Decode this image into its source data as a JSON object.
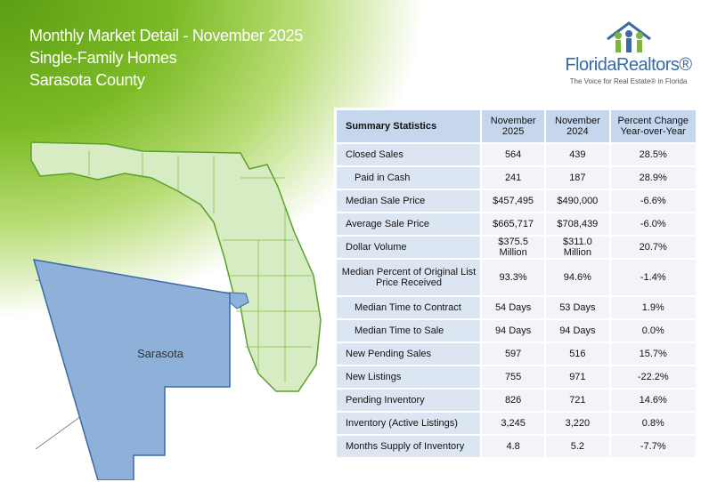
{
  "header": {
    "title": "Monthly Market Detail - November 2025",
    "subtitle": "Single-Family Homes",
    "region": "Sarasota County"
  },
  "logo": {
    "name": "FloridaRealtors®",
    "tagline": "The Voice for Real Estate® in Florida"
  },
  "map": {
    "label": "Sarasota"
  },
  "table": {
    "columns": [
      "Summary Statistics",
      "November 2025",
      "November 2024",
      "Percent Change Year-over-Year"
    ],
    "rows": [
      [
        "Closed Sales",
        "564",
        "439",
        "28.5%"
      ],
      [
        "Paid in Cash",
        "241",
        "187",
        "28.9%"
      ],
      [
        "Median Sale Price",
        "$457,495",
        "$490,000",
        "-6.6%"
      ],
      [
        "Average Sale Price",
        "$665,717",
        "$708,439",
        "-6.0%"
      ],
      [
        "Dollar Volume",
        "$375.5 Million",
        "$311.0 Million",
        "20.7%"
      ],
      [
        "Median Percent of Original List Price Received",
        "93.3%",
        "94.6%",
        "-1.4%"
      ],
      [
        "Median Time to Contract",
        "54 Days",
        "53 Days",
        "1.9%"
      ],
      [
        "Median Time to Sale",
        "94 Days",
        "94 Days",
        "0.0%"
      ],
      [
        "New Pending Sales",
        "597",
        "516",
        "15.7%"
      ],
      [
        "New Listings",
        "755",
        "971",
        "-22.2%"
      ],
      [
        "Pending Inventory",
        "826",
        "721",
        "14.6%"
      ],
      [
        "Inventory (Active Listings)",
        "3,245",
        "3,220",
        "0.8%"
      ],
      [
        "Months Supply of Inventory",
        "4.8",
        "5.2",
        "-7.7%"
      ]
    ]
  }
}
